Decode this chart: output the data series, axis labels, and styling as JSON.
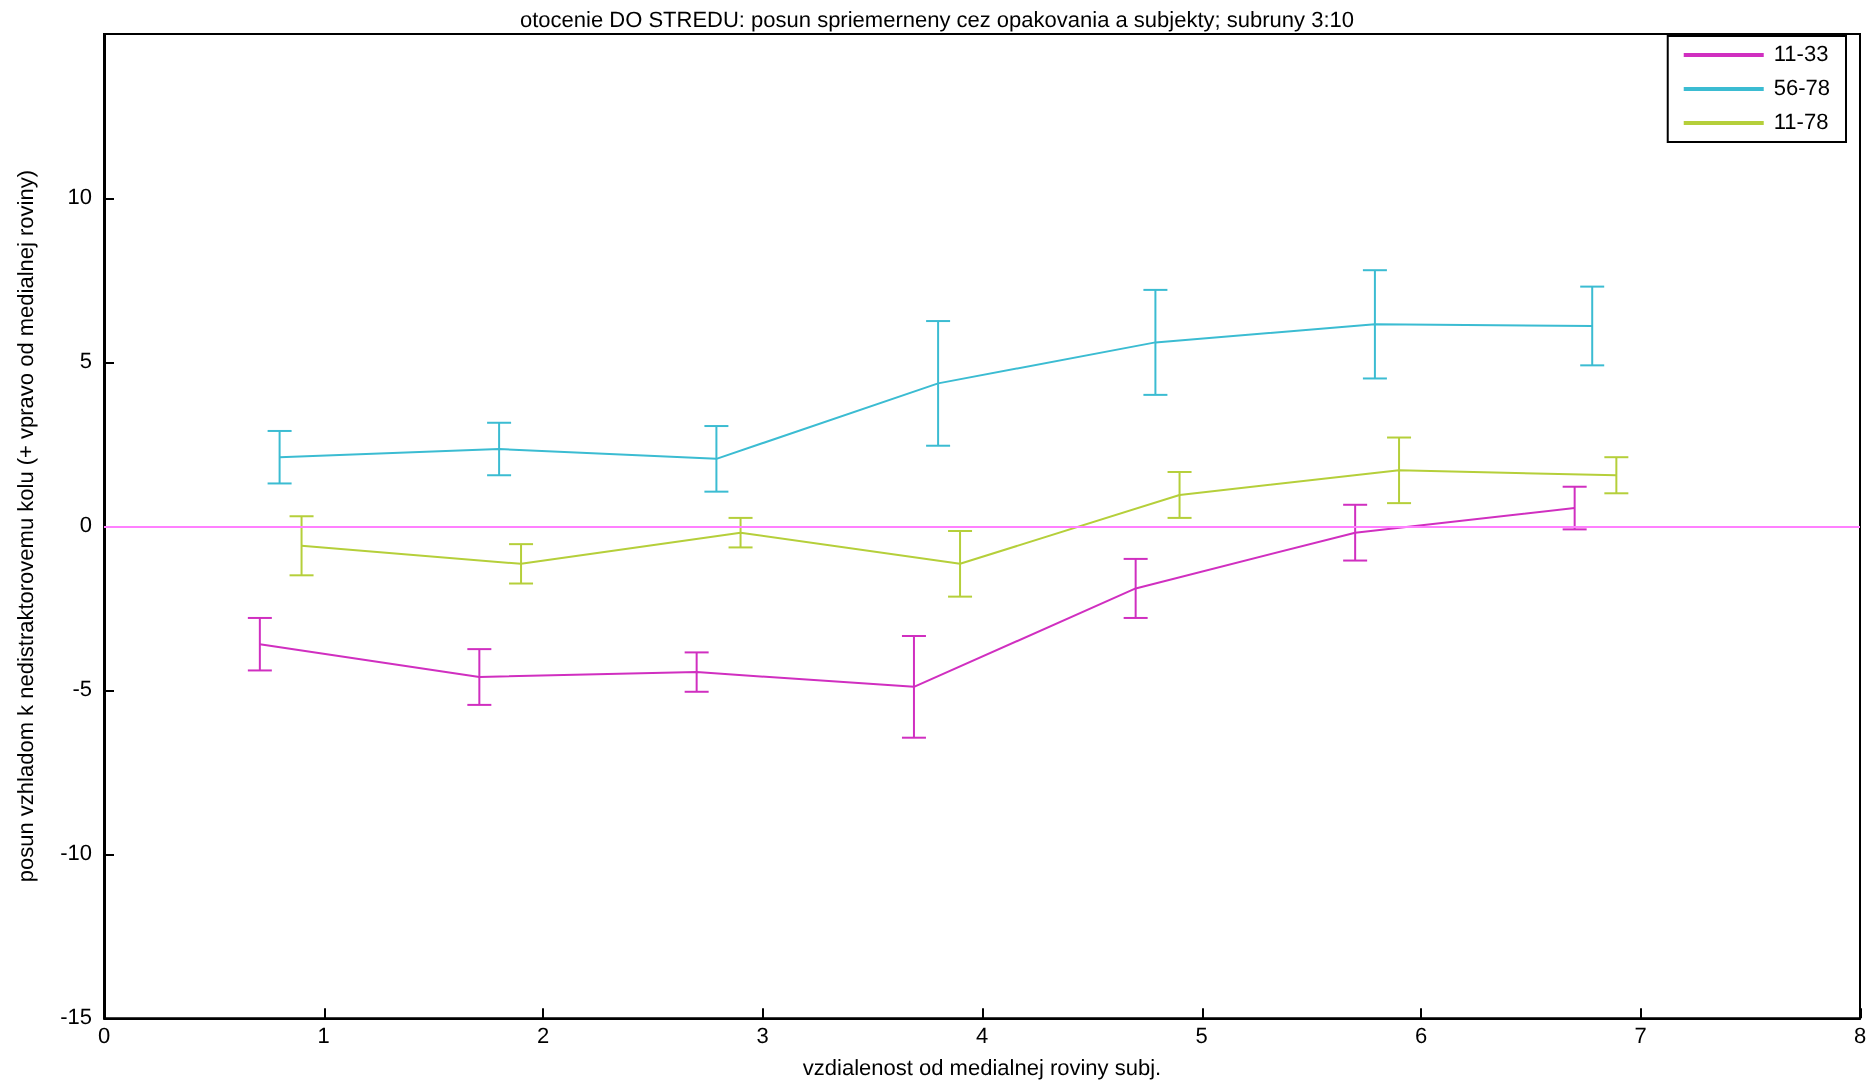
{
  "chart_data": {
    "type": "line",
    "title": "otocenie DO STREDU: posun spriemerneny cez opakovania a subjekty; subruny 3:10",
    "xlabel": "vzdialenost od medialnej roviny subj.",
    "ylabel": "posun vzhladom k nedistraktorovemu kolu (+ vpravo od medialnej roviny)",
    "xlim": [
      0,
      8
    ],
    "xticks": [
      0,
      1,
      2,
      3,
      4,
      5,
      6,
      7,
      8
    ],
    "ylim": [
      -15,
      15
    ],
    "yticks": [
      -15,
      -10,
      -5,
      0,
      5,
      10
    ],
    "grid": false,
    "legend": "top right",
    "marker": "none",
    "line_style": "solid",
    "ref_lines": [
      {
        "axis": "y",
        "value": 0,
        "color": "#ff80ff"
      }
    ],
    "series": [
      {
        "name": "11-33",
        "color": "#d02fc0",
        "x": [
          0.71,
          1.71,
          2.7,
          3.69,
          4.7,
          5.7,
          6.7
        ],
        "values": [
          -3.6,
          -4.6,
          -4.45,
          -4.9,
          -1.9,
          -0.2,
          0.55
        ],
        "errors": [
          0.8,
          0.85,
          0.6,
          1.55,
          0.9,
          0.85,
          0.65
        ]
      },
      {
        "name": "56-78",
        "color": "#3bbcd2",
        "x": [
          0.8,
          1.8,
          2.79,
          3.8,
          4.79,
          5.79,
          6.78
        ],
        "values": [
          2.1,
          2.35,
          2.05,
          4.35,
          5.6,
          6.15,
          6.1
        ],
        "errors": [
          0.8,
          0.8,
          1.0,
          1.9,
          1.6,
          1.65,
          1.2
        ]
      },
      {
        "name": "11-78",
        "color": "#b5cf3a",
        "x": [
          0.9,
          1.9,
          2.9,
          3.9,
          4.9,
          5.9,
          6.89
        ],
        "values": [
          -0.6,
          -1.15,
          -0.2,
          -1.15,
          0.95,
          1.7,
          1.55
        ],
        "errors": [
          0.9,
          0.6,
          0.45,
          1.0,
          0.7,
          1.0,
          0.55
        ]
      }
    ]
  }
}
